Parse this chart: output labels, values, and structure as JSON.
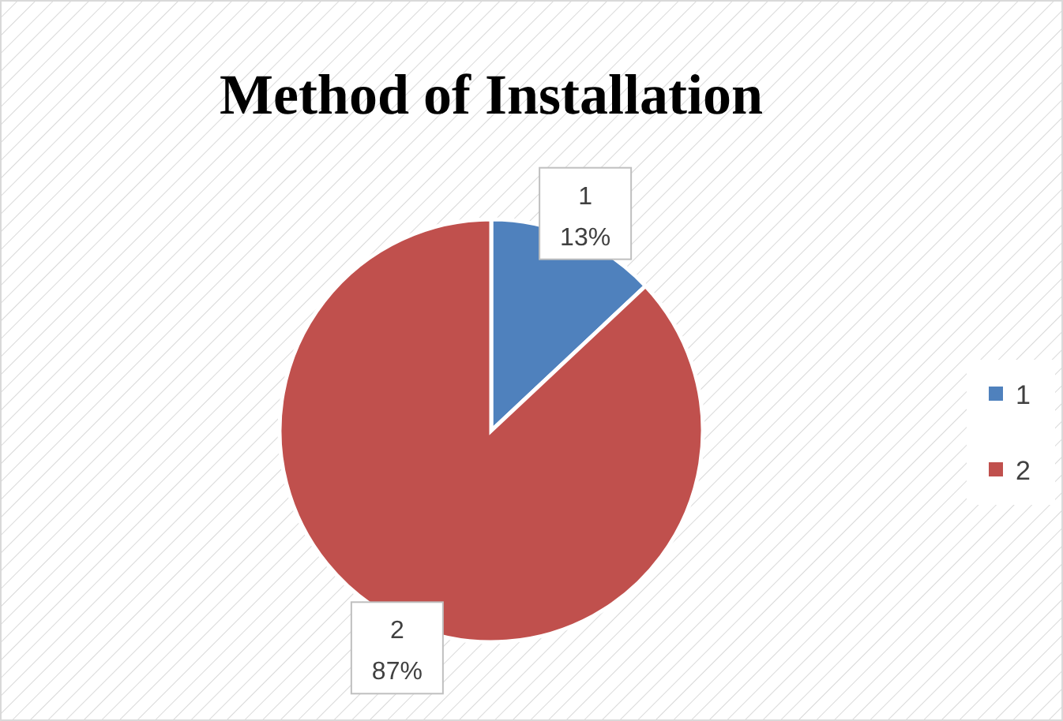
{
  "chart_data": {
    "type": "pie",
    "title": "Method of Installation",
    "categories": [
      "1",
      "2"
    ],
    "values": [
      13,
      87
    ],
    "colors": [
      "#4f81bd",
      "#c0504d"
    ],
    "value_labels": [
      "13%",
      "87%"
    ],
    "legend": "right"
  }
}
